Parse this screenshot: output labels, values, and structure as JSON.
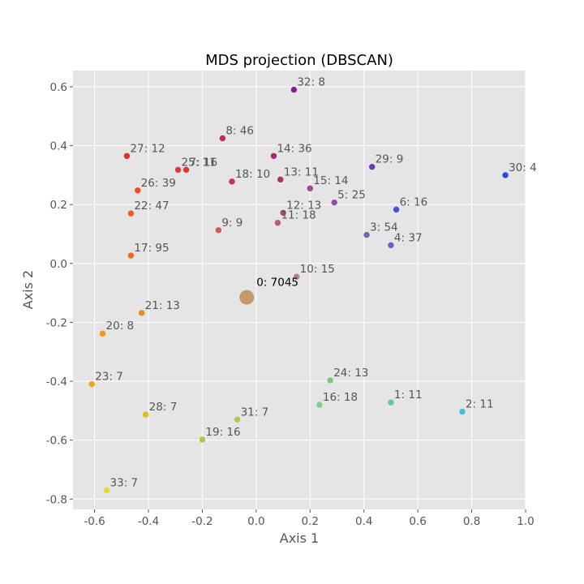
{
  "chart_data": {
    "type": "scatter",
    "title": "MDS projection (DBSCAN)",
    "xlabel": "Axis 1",
    "ylabel": "Axis 2",
    "xlim": [
      -0.68,
      1.0
    ],
    "ylim": [
      -0.835,
      0.655
    ],
    "xticks": [
      "-0.6",
      "-0.4",
      "-0.2",
      "0.0",
      "0.2",
      "0.4",
      "0.6",
      "0.8",
      "1.0"
    ],
    "yticks": [
      "-0.8",
      "-0.6",
      "-0.4",
      "-0.2",
      "0.0",
      "0.2",
      "0.4",
      "0.6"
    ],
    "grid": true,
    "background": "#e5e5e5",
    "points": [
      {
        "label": "0: 7045",
        "x": -0.035,
        "y": -0.115,
        "size": 7045,
        "color": "#c49a6c"
      },
      {
        "label": "32: 8",
        "x": 0.14,
        "y": 0.59,
        "size": 8,
        "color": "#8e1b8e"
      },
      {
        "label": "8: 46",
        "x": -0.125,
        "y": 0.425,
        "size": 46,
        "color": "#c02c52"
      },
      {
        "label": "14: 36",
        "x": 0.065,
        "y": 0.365,
        "size": 36,
        "color": "#a8277a"
      },
      {
        "label": "27: 12",
        "x": -0.48,
        "y": 0.365,
        "size": 12,
        "color": "#e0302a"
      },
      {
        "label": "25: 11",
        "x": -0.29,
        "y": 0.318,
        "size": 11,
        "color": "#e33838"
      },
      {
        "label": "7: 16",
        "x": -0.26,
        "y": 0.318,
        "size": 16,
        "color": "#dc3636"
      },
      {
        "label": "29: 9",
        "x": 0.43,
        "y": 0.328,
        "size": 9,
        "color": "#6a3bb5"
      },
      {
        "label": "30: 4",
        "x": 0.925,
        "y": 0.3,
        "size": 4,
        "color": "#2f49e0"
      },
      {
        "label": "18: 10",
        "x": -0.09,
        "y": 0.278,
        "size": 10,
        "color": "#c8334d"
      },
      {
        "label": "13: 11",
        "x": 0.09,
        "y": 0.285,
        "size": 11,
        "color": "#ad3070"
      },
      {
        "label": "15: 14",
        "x": 0.2,
        "y": 0.255,
        "size": 14,
        "color": "#9c4a93"
      },
      {
        "label": "26: 39",
        "x": -0.44,
        "y": 0.248,
        "size": 39,
        "color": "#ee4a20"
      },
      {
        "label": "5: 25",
        "x": 0.29,
        "y": 0.207,
        "size": 25,
        "color": "#8a4ea8"
      },
      {
        "label": "6: 16",
        "x": 0.52,
        "y": 0.183,
        "size": 16,
        "color": "#5050d0"
      },
      {
        "label": "22: 47",
        "x": -0.465,
        "y": 0.17,
        "size": 47,
        "color": "#f15a22"
      },
      {
        "label": "12: 13",
        "x": 0.1,
        "y": 0.172,
        "size": 13,
        "color": "#b04a6e"
      },
      {
        "label": "11: 18",
        "x": 0.08,
        "y": 0.138,
        "size": 18,
        "color": "#b85c78"
      },
      {
        "label": "9: 9",
        "x": -0.14,
        "y": 0.113,
        "size": 9,
        "color": "#cc5c62"
      },
      {
        "label": "3: 54",
        "x": 0.41,
        "y": 0.097,
        "size": 54,
        "color": "#7a5fbf"
      },
      {
        "label": "4: 37",
        "x": 0.5,
        "y": 0.062,
        "size": 37,
        "color": "#6260d2"
      },
      {
        "label": "17: 95",
        "x": -0.465,
        "y": 0.027,
        "size": 95,
        "color": "#ec6a1c"
      },
      {
        "label": "10: 15",
        "x": 0.15,
        "y": -0.045,
        "size": 15,
        "color": "#b8807e"
      },
      {
        "label": "21: 13",
        "x": -0.425,
        "y": -0.168,
        "size": 13,
        "color": "#ee8a1a"
      },
      {
        "label": "20: 8",
        "x": -0.57,
        "y": -0.238,
        "size": 8,
        "color": "#f09a1c"
      },
      {
        "label": "24: 13",
        "x": 0.275,
        "y": -0.397,
        "size": 13,
        "color": "#7cc97c"
      },
      {
        "label": "23: 7",
        "x": -0.61,
        "y": -0.41,
        "size": 7,
        "color": "#f0a418"
      },
      {
        "label": "1: 11",
        "x": 0.5,
        "y": -0.472,
        "size": 11,
        "color": "#5ec8a8"
      },
      {
        "label": "16: 18",
        "x": 0.235,
        "y": -0.48,
        "size": 18,
        "color": "#86c98a"
      },
      {
        "label": "2: 11",
        "x": 0.765,
        "y": -0.503,
        "size": 11,
        "color": "#40c0d8"
      },
      {
        "label": "28: 7",
        "x": -0.41,
        "y": -0.513,
        "size": 7,
        "color": "#d8be20"
      },
      {
        "label": "31: 7",
        "x": -0.07,
        "y": -0.53,
        "size": 7,
        "color": "#a8cc50"
      },
      {
        "label": "19: 16",
        "x": -0.2,
        "y": -0.598,
        "size": 16,
        "color": "#b0c840"
      },
      {
        "label": "33: 7",
        "x": -0.555,
        "y": -0.77,
        "size": 7,
        "color": "#dede30"
      }
    ]
  }
}
